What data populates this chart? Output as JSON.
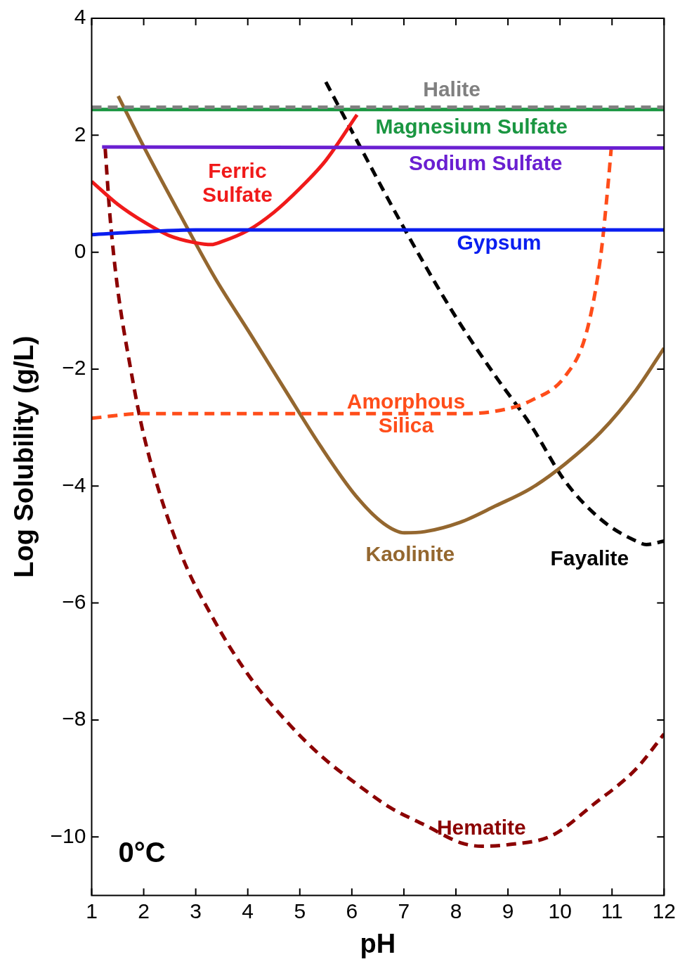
{
  "chart_data": {
    "type": "line",
    "xlabel": "pH",
    "ylabel": "Log Solubility (g/L)",
    "xlim": [
      1,
      12
    ],
    "xticks": [
      1,
      2,
      3,
      4,
      5,
      6,
      7,
      8,
      9,
      10,
      11,
      12
    ],
    "ylim": [
      -11,
      4
    ],
    "yticks": [
      -10,
      -8,
      -6,
      -4,
      -2,
      0,
      2,
      4
    ],
    "grid": false,
    "legend": false,
    "marker": "none",
    "annotations": [
      "0°C"
    ],
    "series": [
      {
        "name": "Halite",
        "color": "#808080",
        "line_style": "dashed",
        "x": [
          1,
          12
        ],
        "values": [
          2.48,
          2.48
        ]
      },
      {
        "name": "Magnesium Sulfate",
        "color": "#1a9641",
        "line_style": "solid",
        "x": [
          1,
          12
        ],
        "values": [
          2.44,
          2.44
        ]
      },
      {
        "name": "Sodium Sulfate",
        "color": "#6a1fd1",
        "line_style": "solid",
        "x": [
          1.2,
          6,
          12
        ],
        "values": [
          1.8,
          1.79,
          1.78
        ]
      },
      {
        "name": "Gypsum",
        "color": "#0a1ef0",
        "line_style": "solid",
        "x": [
          1,
          2,
          3,
          4,
          12
        ],
        "values": [
          0.3,
          0.35,
          0.38,
          0.38,
          0.38
        ]
      },
      {
        "name": "Ferric Sulfate",
        "color": "#f01a1a",
        "line_style": "solid",
        "x": [
          1,
          1.5,
          2,
          2.5,
          3,
          3.3,
          3.5,
          4,
          4.5,
          5,
          5.5,
          6.1
        ],
        "values": [
          1.21,
          0.82,
          0.52,
          0.28,
          0.16,
          0.13,
          0.18,
          0.37,
          0.68,
          1.09,
          1.57,
          2.35
        ]
      },
      {
        "name": "Amorphous Silica",
        "color": "#ff4d1a",
        "line_style": "dashed",
        "x": [
          1,
          2,
          4,
          6,
          8,
          8.76,
          9.44,
          10.1,
          10.5,
          10.78,
          10.92,
          10.99
        ],
        "values": [
          -2.84,
          -2.76,
          -2.76,
          -2.76,
          -2.76,
          -2.72,
          -2.54,
          -2.12,
          -1.4,
          -0.08,
          1.12,
          1.83
        ]
      },
      {
        "name": "Kaolinite",
        "color": "#94672f",
        "line_style": "solid",
        "x": [
          1.51,
          2.02,
          2.7,
          3.37,
          4.05,
          4.72,
          5.4,
          6.07,
          6.61,
          7.01,
          7.4,
          8.08,
          8.76,
          9.44,
          10.1,
          10.78,
          11.46,
          12
        ],
        "values": [
          2.67,
          1.77,
          0.64,
          -0.44,
          -1.4,
          -2.36,
          -3.32,
          -4.16,
          -4.64,
          -4.8,
          -4.78,
          -4.62,
          -4.34,
          -4.04,
          -3.62,
          -3.08,
          -2.36,
          -1.64
        ]
      },
      {
        "name": "Fayalite",
        "color": "#000000",
        "line_style": "dashed",
        "x": [
          5.5,
          6,
          7.01,
          7.95,
          8.76,
          9.44,
          10.1,
          10.8,
          11.46,
          11.66,
          12
        ],
        "values": [
          2.91,
          2.07,
          0.4,
          -1.04,
          -2.12,
          -2.96,
          -3.92,
          -4.58,
          -4.94,
          -5,
          -4.94
        ]
      },
      {
        "name": "Hematite",
        "color": "#8b0000",
        "line_style": "dashed",
        "x": [
          1.26,
          1.35,
          1.49,
          1.75,
          2.02,
          2.7,
          3.37,
          4.05,
          4.72,
          5.39,
          6.07,
          6.74,
          7.41,
          8.09,
          8.5,
          9.03,
          9.84,
          10.65,
          11.46,
          12
        ],
        "values": [
          1.77,
          0.64,
          -0.56,
          -2,
          -3.2,
          -5.12,
          -6.32,
          -7.28,
          -8,
          -8.6,
          -9.08,
          -9.5,
          -9.8,
          -10.1,
          -10.16,
          -10.13,
          -9.98,
          -9.44,
          -8.84,
          -8.24
        ]
      }
    ]
  }
}
